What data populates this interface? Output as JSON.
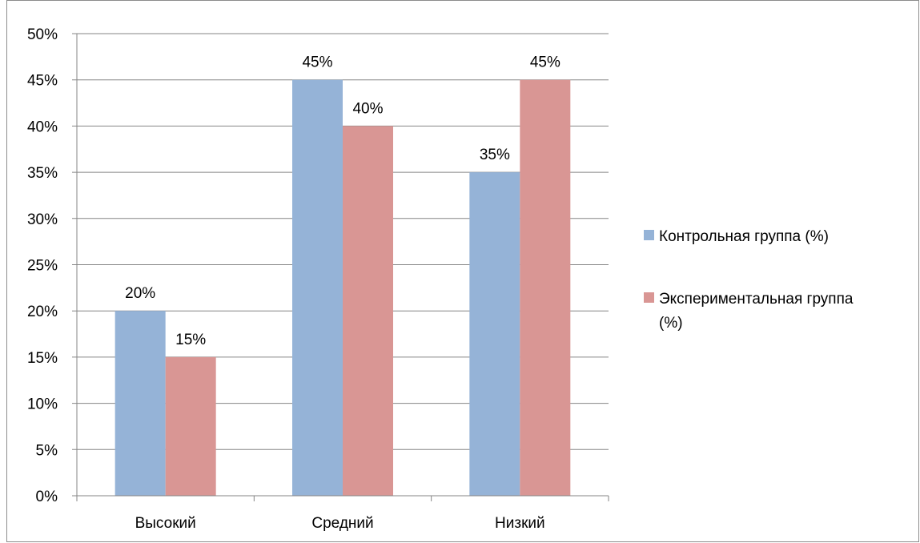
{
  "chart_data": {
    "type": "bar",
    "categories": [
      "Высокий",
      "Средний",
      "Низкий"
    ],
    "series": [
      {
        "name": "Контрольная группа (%)",
        "values": [
          20,
          45,
          35
        ],
        "color": "#95b3d7",
        "data_labels": [
          "20%",
          "45%",
          "35%"
        ]
      },
      {
        "name": "Экспериментальная группа (%)",
        "values": [
          15,
          40,
          45
        ],
        "color": "#d99694",
        "data_labels": [
          "15%",
          "40%",
          "45%"
        ]
      }
    ],
    "ylim": [
      0,
      50
    ],
    "yticks": [
      0,
      5,
      10,
      15,
      20,
      25,
      30,
      35,
      40,
      45,
      50
    ],
    "ytick_labels": [
      "0%",
      "5%",
      "10%",
      "15%",
      "20%",
      "25%",
      "30%",
      "35%",
      "40%",
      "45%",
      "50%"
    ],
    "grid": true,
    "legend_position": "right",
    "legend_lines": [
      [
        "Контрольная группа (%)"
      ],
      [
        "Экспериментальная группа",
        "(%)"
      ]
    ]
  }
}
